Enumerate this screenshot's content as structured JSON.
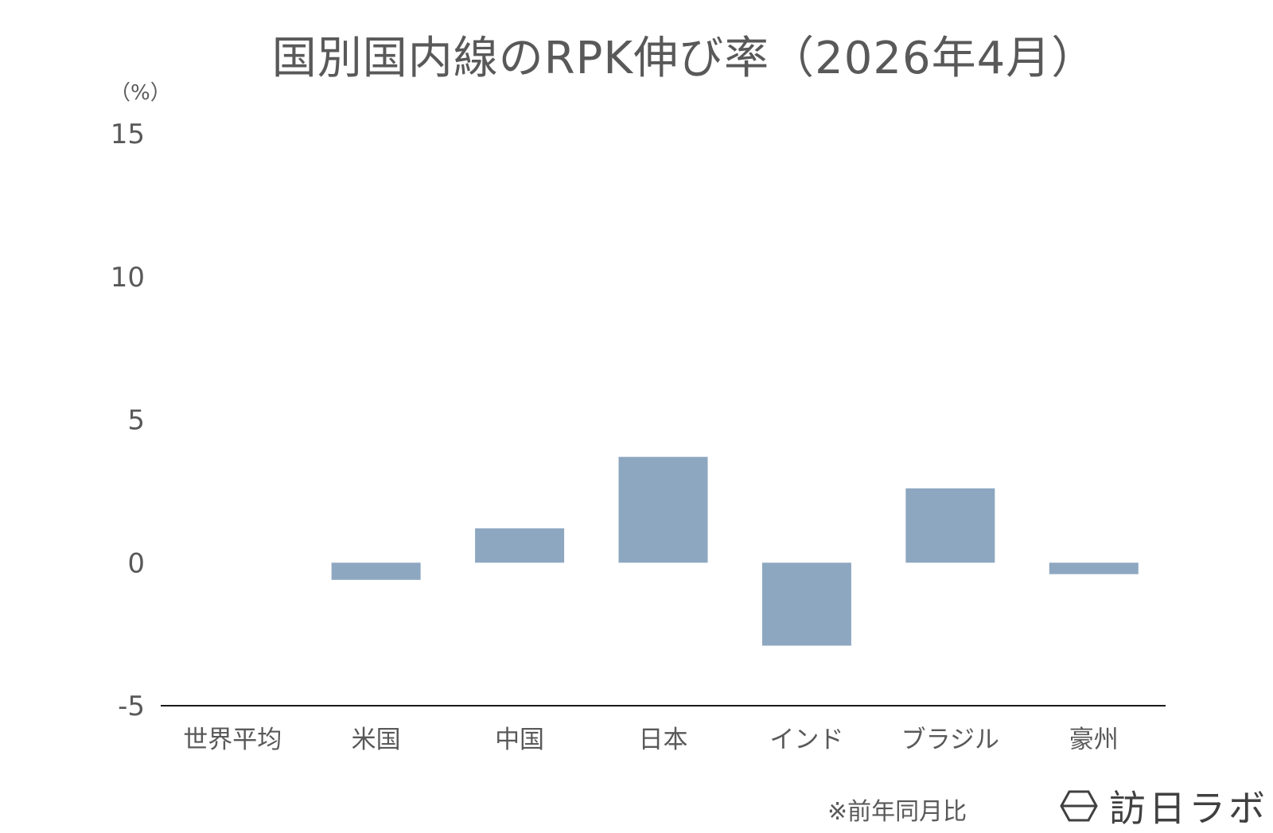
{
  "chart_data": {
    "type": "bar",
    "title": "国別国内線のRPK伸び率（2026年4月）",
    "unit_label": "（%）",
    "categories": [
      "世界平均",
      "米国",
      "中国",
      "日本",
      "インド",
      "ブラジル",
      "豪州"
    ],
    "series": [
      {
        "values": [
          0.0,
          -0.6,
          1.2,
          3.7,
          -2.9,
          2.6,
          -0.4
        ]
      }
    ],
    "ylim": [
      -5,
      15
    ],
    "yticks": [
      15,
      10,
      5,
      0,
      -5
    ],
    "grid": false,
    "legend": "none",
    "bar_color": "#8ea7c1",
    "axis_color": "#1a1a1a",
    "note": "※前年同月比"
  },
  "brand": {
    "logo_text": "訪日ラボ",
    "logo_icon": "hexagon-logo-icon"
  }
}
